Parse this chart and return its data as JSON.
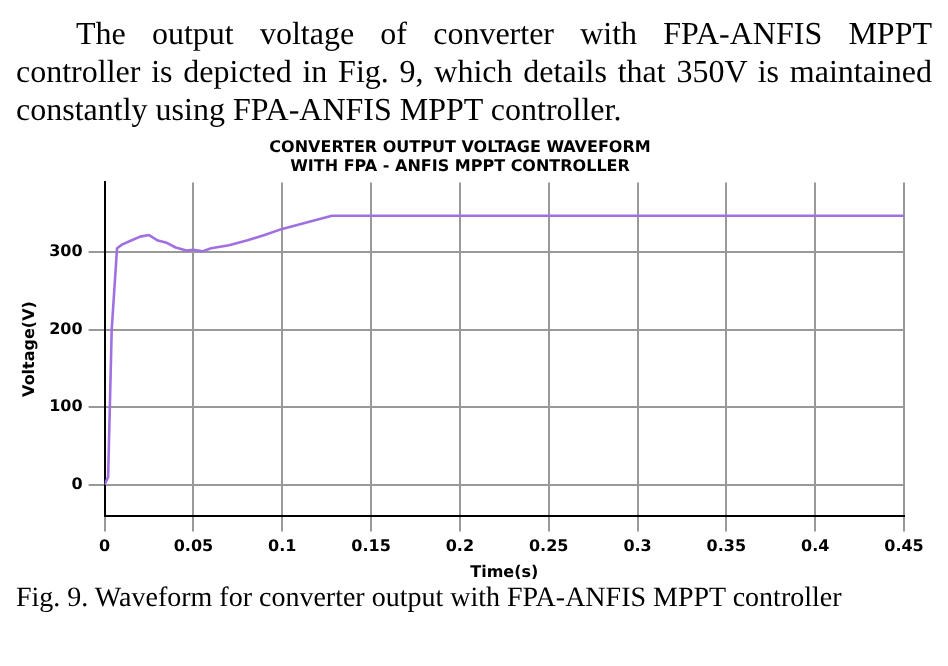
{
  "chart_data": {
    "type": "line",
    "title": "CONVERTER OUTPUT VOLTAGE WAVEFORM\nWITH FPA - ANFIS MPPT CONTROLLER",
    "xlabel": "Time(s)",
    "ylabel": "Voltage(V)",
    "annotations": [
      "The output voltage of converter with FPA-ANFIS MPPT controller is depicted in Fig. 9, which details that 350V is maintained constantly using FPA-ANFIS MPPT controller.",
      "Fig. 9. Waveform for converter output with FPA-ANFIS MPPT controller"
    ],
    "x": [
      0,
      0.002,
      0.004,
      0.007,
      0.01,
      0.015,
      0.02,
      0.025,
      0.03,
      0.035,
      0.04,
      0.046,
      0.05,
      0.055,
      0.06,
      0.07,
      0.08,
      0.09,
      0.1,
      0.11,
      0.12,
      0.128,
      0.15,
      0.2,
      0.25,
      0.3,
      0.35,
      0.4,
      0.45
    ],
    "series": [
      {
        "color": "#a070e0",
        "values": [
          0,
          10,
          200,
          305,
          310,
          315,
          320,
          322,
          315,
          312,
          306,
          302,
          303,
          301,
          305,
          309,
          315,
          322,
          330,
          336,
          342,
          347,
          347,
          347,
          347,
          347,
          347,
          347,
          347
        ]
      }
    ],
    "xlim": [
      0,
      0.45
    ],
    "xticks": [
      0,
      0.05,
      0.1,
      0.15,
      0.2,
      0.25,
      0.3,
      0.35,
      0.4,
      0.45
    ],
    "ylim": [
      -40,
      390
    ],
    "yticks": [
      0,
      100,
      200,
      300
    ],
    "grid": true,
    "legend": false,
    "marker": "none",
    "line_style": "solid"
  }
}
